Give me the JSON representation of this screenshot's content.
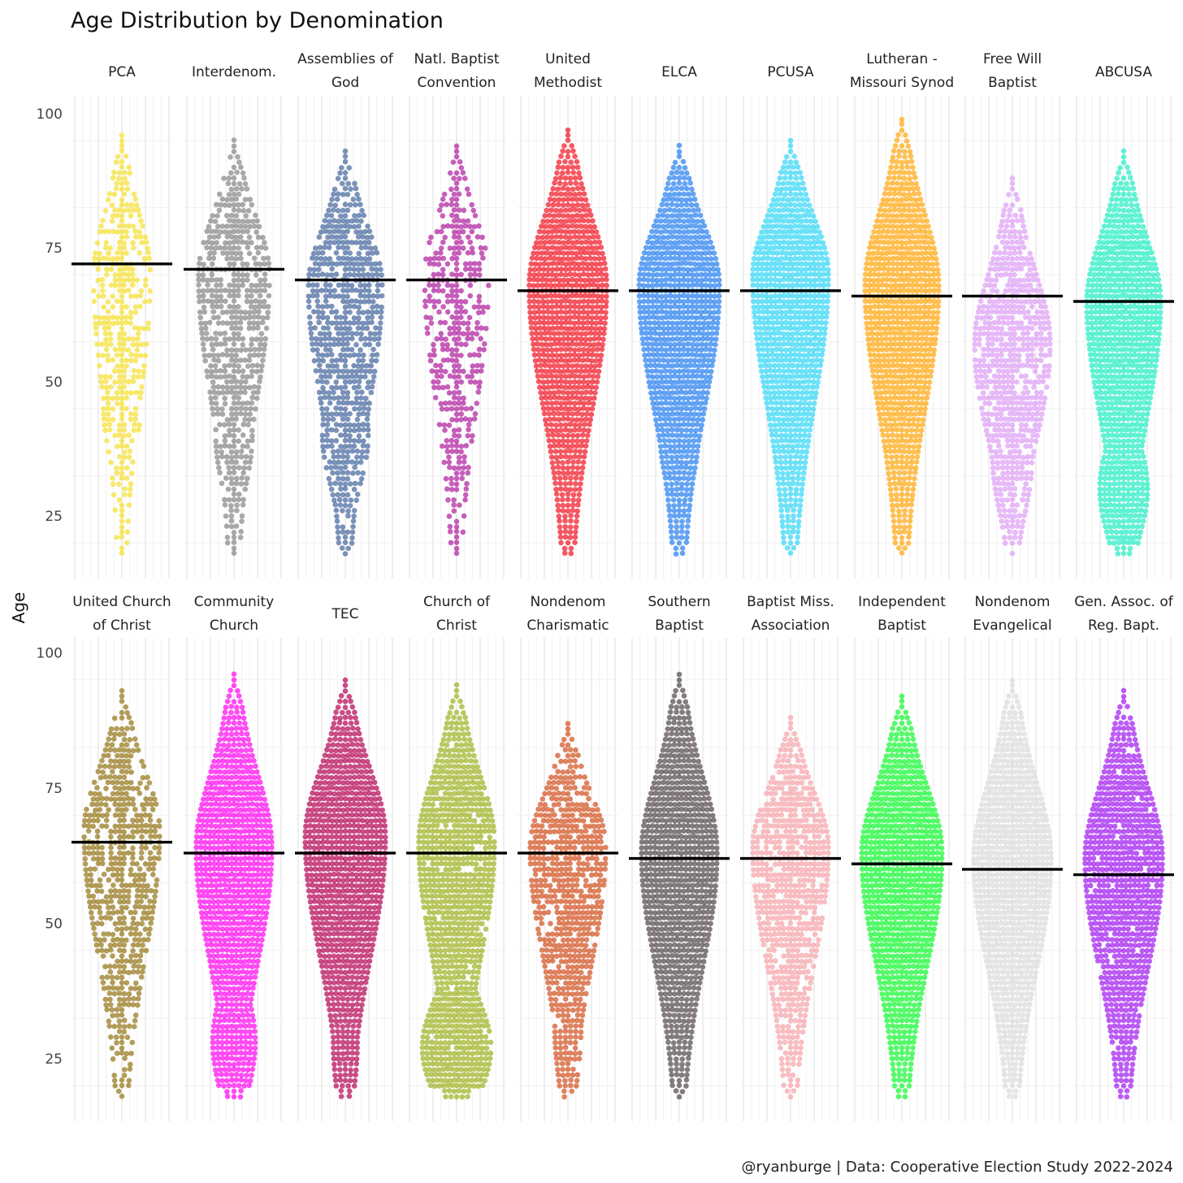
{
  "chart_data": {
    "type": "scatter",
    "subtype": "beeswarm-facets",
    "title": "Age Distribution by Denomination",
    "xlabel": "",
    "ylabel": "Age",
    "ylim": [
      15,
      103
    ],
    "yticks": [
      25,
      50,
      75,
      100
    ],
    "grid": true,
    "legend": "none",
    "caption": "@ryanburge | Data: Cooperative Election Study 2022-2024",
    "mean_line_color": "#000000",
    "series": [
      {
        "name": "PCA",
        "label_lines": [
          "PCA"
        ],
        "color": "#F5E23C",
        "mean": 72,
        "min": 18,
        "max": 96,
        "peak": 70,
        "width": 0.6,
        "skew": 0.8,
        "lowbulge": 0.65,
        "bulgeAt": 45,
        "n": 420
      },
      {
        "name": "Interdenom.",
        "label_lines": [
          "Interdenom."
        ],
        "color": "#8C8C8C",
        "mean": 71,
        "min": 18,
        "max": 95,
        "peak": 70,
        "width": 0.75,
        "skew": 0.8,
        "lowbulge": 0.5,
        "bulgeAt": 40,
        "n": 620
      },
      {
        "name": "Assemblies of God",
        "label_lines": [
          "Assemblies of",
          "God"
        ],
        "color": "#4F6FA3",
        "mean": 69,
        "min": 18,
        "max": 93,
        "peak": 68,
        "width": 0.78,
        "skew": 0.75,
        "lowbulge": 0.62,
        "bulgeAt": 40,
        "n": 700
      },
      {
        "name": "Natl. Baptist Convention",
        "label_lines": [
          "Natl. Baptist",
          "Convention"
        ],
        "color": "#B32BA3",
        "mean": 69,
        "min": 18,
        "max": 94,
        "peak": 70,
        "width": 0.68,
        "skew": 0.85,
        "lowbulge": 0.3,
        "bulgeAt": 38,
        "n": 360
      },
      {
        "name": "United Methodist",
        "label_lines": [
          "United",
          "Methodist"
        ],
        "color": "#F2222F",
        "mean": 67,
        "min": 18,
        "max": 97,
        "peak": 68,
        "width": 0.82,
        "skew": 0.7,
        "lowbulge": 0.2,
        "bulgeAt": 40,
        "n": 1800
      },
      {
        "name": "ELCA",
        "label_lines": [
          "ELCA"
        ],
        "color": "#3285F0",
        "mean": 67,
        "min": 18,
        "max": 94,
        "peak": 68,
        "width": 0.85,
        "skew": 0.7,
        "lowbulge": 0.45,
        "bulgeAt": 40,
        "n": 1500
      },
      {
        "name": "PCUSA",
        "label_lines": [
          "PCUSA"
        ],
        "color": "#3DD8F5",
        "mean": 67,
        "min": 18,
        "max": 95,
        "peak": 70,
        "width": 0.8,
        "skew": 0.75,
        "lowbulge": 0.25,
        "bulgeAt": 40,
        "n": 1100
      },
      {
        "name": "Lutheran - Missouri Synod",
        "label_lines": [
          "Lutheran -",
          "Missouri Synod"
        ],
        "color": "#FFAB1A",
        "mean": 66,
        "min": 18,
        "max": 99,
        "peak": 68,
        "width": 0.78,
        "skew": 0.72,
        "lowbulge": 0.28,
        "bulgeAt": 40,
        "n": 1100
      },
      {
        "name": "Free Will Baptist",
        "label_lines": [
          "Free Will",
          "Baptist"
        ],
        "color": "#DFA3F5",
        "mean": 66,
        "min": 18,
        "max": 88,
        "peak": 57,
        "width": 0.8,
        "skew": 0.55,
        "lowbulge": 0.5,
        "bulgeAt": 35,
        "n": 800
      },
      {
        "name": "ABCUSA",
        "label_lines": [
          "ABCUSA"
        ],
        "color": "#2EEEC6",
        "mean": 65,
        "min": 18,
        "max": 93,
        "peak": 65,
        "width": 0.78,
        "skew": 0.7,
        "lowbulge": 0.65,
        "bulgeAt": 30,
        "n": 1100
      },
      {
        "name": "United Church of Christ",
        "label_lines": [
          "United Church",
          "of Christ"
        ],
        "color": "#9A7C23",
        "mean": 65,
        "min": 18,
        "max": 93,
        "peak": 67,
        "width": 0.8,
        "skew": 0.75,
        "lowbulge": 0.45,
        "bulgeAt": 40,
        "n": 520
      },
      {
        "name": "Community Church",
        "label_lines": [
          "Community",
          "Church"
        ],
        "color": "#FF12F0",
        "mean": 63,
        "min": 18,
        "max": 96,
        "peak": 64,
        "width": 0.8,
        "skew": 0.65,
        "lowbulge": 0.55,
        "bulgeAt": 28,
        "n": 1500
      },
      {
        "name": "TEC",
        "label_lines": [
          "TEC"
        ],
        "color": "#B8125E",
        "mean": 63,
        "min": 18,
        "max": 95,
        "peak": 66,
        "width": 0.85,
        "skew": 0.7,
        "lowbulge": 0.25,
        "bulgeAt": 28,
        "n": 1400
      },
      {
        "name": "Church of Christ",
        "label_lines": [
          "Church of",
          "Christ"
        ],
        "color": "#A3B52D",
        "mean": 63,
        "min": 18,
        "max": 94,
        "peak": 65,
        "width": 0.8,
        "skew": 0.7,
        "lowbulge": 0.95,
        "bulgeAt": 27,
        "n": 1000
      },
      {
        "name": "Nondenom Charismatic",
        "label_lines": [
          "Nondenom",
          "Charismatic"
        ],
        "color": "#D45A2B",
        "mean": 63,
        "min": 18,
        "max": 87,
        "peak": 64,
        "width": 0.8,
        "skew": 0.68,
        "lowbulge": 0.3,
        "bulgeAt": 30,
        "n": 800
      },
      {
        "name": "Southern Baptist",
        "label_lines": [
          "Southern",
          "Baptist"
        ],
        "color": "#5A5055",
        "mean": 62,
        "min": 18,
        "max": 96,
        "peak": 63,
        "width": 0.8,
        "skew": 0.62,
        "lowbulge": 0.2,
        "bulgeAt": 40,
        "n": 2000
      },
      {
        "name": "Baptist Miss. Association",
        "label_lines": [
          "Baptist Miss.",
          "Association"
        ],
        "color": "#F5A8AD",
        "mean": 62,
        "min": 18,
        "max": 88,
        "peak": 64,
        "width": 0.8,
        "skew": 0.65,
        "lowbulge": 0.35,
        "bulgeAt": 38,
        "n": 800
      },
      {
        "name": "Independent Baptist",
        "label_lines": [
          "Independent",
          "Baptist"
        ],
        "color": "#1EFA3A",
        "mean": 61,
        "min": 18,
        "max": 92,
        "peak": 63,
        "width": 0.85,
        "skew": 0.6,
        "lowbulge": 0.3,
        "bulgeAt": 35,
        "n": 1600
      },
      {
        "name": "Nondenom Evangelical",
        "label_lines": [
          "Nondenom",
          "Evangelical"
        ],
        "color": "#DCDCDC",
        "mean": 60,
        "min": 18,
        "max": 95,
        "peak": 62,
        "width": 0.82,
        "skew": 0.62,
        "lowbulge": 0.3,
        "bulgeAt": 35,
        "n": 1800
      },
      {
        "name": "Gen. Assoc. of Reg. Bapt.",
        "label_lines": [
          "Gen. Assoc. of",
          "Reg. Bapt."
        ],
        "color": "#A625F2",
        "mean": 59,
        "min": 18,
        "max": 93,
        "peak": 62,
        "width": 0.82,
        "skew": 0.6,
        "lowbulge": 0.3,
        "bulgeAt": 40,
        "n": 1000
      }
    ]
  }
}
